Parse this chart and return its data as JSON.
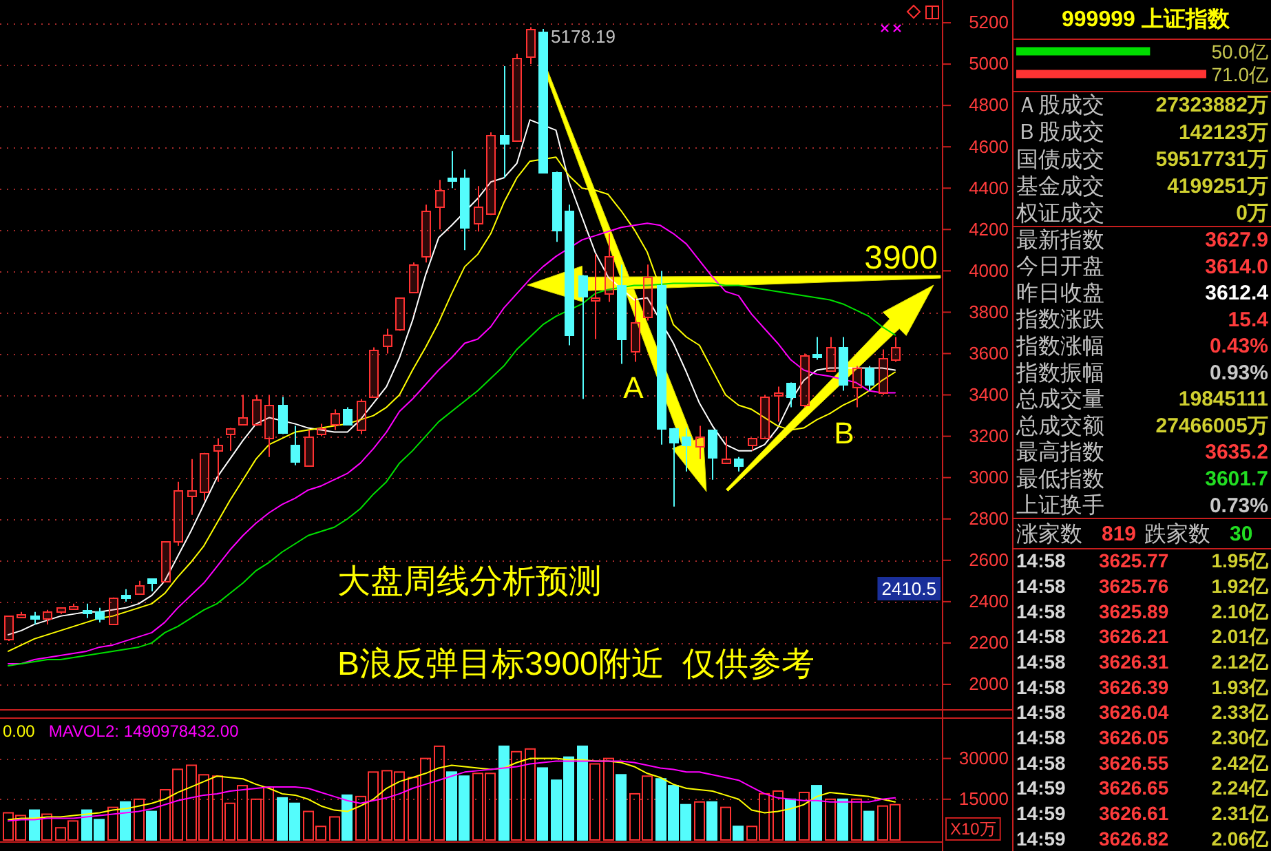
{
  "chart_data": [
    {
      "type": "candlestick",
      "categories": [
        null,
        null,
        null,
        null,
        null,
        null,
        null,
        null,
        null,
        null,
        null,
        null,
        null,
        null,
        null,
        null,
        null,
        null,
        null,
        null,
        null,
        null,
        null,
        null,
        null,
        null,
        null,
        null,
        null,
        null,
        null,
        null,
        null,
        null,
        null,
        null,
        null,
        null,
        null,
        null,
        null,
        null,
        null,
        null,
        null,
        null,
        null,
        null,
        null,
        null,
        null,
        null,
        null,
        null,
        null,
        null,
        null,
        null,
        null,
        null,
        null,
        null,
        null,
        null,
        null,
        null,
        null,
        null,
        null
      ],
      "ohlc": [
        [
          2220,
          2330,
          2210,
          2330
        ],
        [
          2330,
          2350,
          2320,
          2340
        ],
        [
          2330,
          2350,
          2290,
          2320
        ],
        [
          2320,
          2360,
          2290,
          2350
        ],
        [
          2350,
          2370,
          2340,
          2370
        ],
        [
          2370,
          2390,
          2360,
          2380
        ],
        [
          2360,
          2390,
          2320,
          2350
        ],
        [
          2350,
          2370,
          2300,
          2320
        ],
        [
          2290,
          2420,
          2290,
          2420
        ],
        [
          2430,
          2460,
          2400,
          2420
        ],
        [
          2440,
          2500,
          2440,
          2480
        ],
        [
          2510,
          2510,
          2450,
          2490
        ],
        [
          2500,
          2690,
          2500,
          2690
        ],
        [
          2690,
          2980,
          2670,
          2940
        ],
        [
          2910,
          3090,
          2820,
          2940
        ],
        [
          2930,
          3120,
          2890,
          3120
        ],
        [
          3130,
          3190,
          2980,
          3160
        ],
        [
          3210,
          3240,
          3130,
          3240
        ],
        [
          3260,
          3400,
          3260,
          3290
        ],
        [
          3260,
          3400,
          3250,
          3380
        ],
        [
          3190,
          3400,
          3100,
          3350
        ],
        [
          3350,
          3390,
          3210,
          3220
        ],
        [
          3160,
          3250,
          3060,
          3080
        ],
        [
          3060,
          3230,
          3060,
          3200
        ],
        [
          3210,
          3260,
          3200,
          3240
        ],
        [
          3260,
          3330,
          3230,
          3310
        ],
        [
          3330,
          3340,
          3260,
          3260
        ],
        [
          3230,
          3380,
          3210,
          3370
        ],
        [
          3390,
          3630,
          3390,
          3620
        ],
        [
          3640,
          3720,
          3600,
          3690
        ],
        [
          3720,
          3870,
          3710,
          3870
        ],
        [
          3900,
          4040,
          3900,
          4030
        ],
        [
          4070,
          4320,
          4040,
          4290
        ],
        [
          4310,
          4440,
          4200,
          4390
        ],
        [
          4450,
          4580,
          4400,
          4440
        ],
        [
          4450,
          4490,
          4100,
          4210
        ],
        [
          4230,
          4410,
          4190,
          4310
        ],
        [
          4280,
          4670,
          4270,
          4660
        ],
        [
          4660,
          4990,
          4450,
          4620
        ],
        [
          4630,
          5050,
          4630,
          5030
        ],
        [
          5040,
          5178.19,
          5000,
          5170
        ],
        [
          5160,
          5170,
          4480,
          4480
        ],
        [
          4480,
          4480,
          4140,
          4200
        ],
        [
          4290,
          4320,
          3640,
          3690
        ],
        [
          3980,
          3980,
          3380,
          3880
        ],
        [
          3860,
          4080,
          3670,
          3870
        ],
        [
          3890,
          4180,
          3850,
          4070
        ],
        [
          3930,
          4030,
          3550,
          3670
        ],
        [
          3610,
          3870,
          3560,
          3750
        ],
        [
          3780,
          4030,
          3760,
          3970
        ],
        [
          3930,
          4000,
          3160,
          3240
        ],
        [
          3240,
          3240,
          2860,
          3170
        ],
        [
          3200,
          3240,
          3030,
          3160
        ],
        [
          3150,
          3250,
          3090,
          3200
        ],
        [
          3230,
          3230,
          2990,
          3100
        ],
        [
          3070,
          3200,
          3070,
          3090
        ],
        [
          3090,
          3100,
          3030,
          3060
        ],
        [
          3160,
          3190,
          3130,
          3190
        ],
        [
          3190,
          3400,
          3190,
          3390
        ],
        [
          3400,
          3440,
          3270,
          3410
        ],
        [
          3460,
          3460,
          3340,
          3390
        ],
        [
          3350,
          3600,
          3340,
          3590
        ],
        [
          3600,
          3680,
          3570,
          3590
        ],
        [
          3520,
          3680,
          3520,
          3630
        ],
        [
          3630,
          3680,
          3420,
          3450
        ],
        [
          3440,
          3540,
          3340,
          3530
        ],
        [
          3530,
          3540,
          3420,
          3450
        ],
        [
          3410,
          3620,
          3400,
          3580
        ],
        [
          3570,
          3680,
          3560,
          3630
        ]
      ],
      "series": [
        {
          "type": "line",
          "color": "#ffffff",
          "values": [
            2240,
            2260,
            2290,
            2310,
            2330,
            2340,
            2350,
            2350,
            2360,
            2370,
            2390,
            2430,
            2500,
            2620,
            2740,
            2870,
            3000,
            3090,
            3180,
            3260,
            3290,
            null,
            3260,
            3240,
            3230,
            3220,
            3220,
            3280,
            3360,
            3440,
            3580,
            3760,
            3980,
            4160,
            4220,
            null,
            4350,
            4430,
            4450,
            4520,
            4730,
            null,
            4680,
            4430,
            4260,
            4090,
            3970,
            null,
            3860,
            3870,
            null,
            3650,
            3510,
            3360,
            3250,
            3160,
            3130,
            3130,
            3160,
            3240,
            3370,
            3470,
            3520,
            3530,
            null,
            3530,
            3530,
            3530,
            3520
          ]
        },
        {
          "type": "line",
          "color": "#ffff00",
          "values": [
            2160,
            2190,
            2220,
            2240,
            2260,
            2280,
            2300,
            2320,
            2330,
            2350,
            2370,
            2390,
            2440,
            2520,
            2590,
            2670,
            2780,
            2890,
            2990,
            3090,
            3160,
            3190,
            3220,
            3230,
            3240,
            3250,
            3260,
            3280,
            3300,
            3340,
            3400,
            3520,
            3630,
            3750,
            3890,
            4020,
            4080,
            4180,
            4330,
            4450,
            4530,
            null,
            4550,
            4460,
            4400,
            4390,
            4370,
            4290,
            4200,
            4090,
            null,
            3740,
            3680,
            3640,
            3520,
            3400,
            3350,
            3330,
            3290,
            3250,
            3230,
            3240,
            3280,
            3310,
            3350,
            3380,
            3420,
            3470,
            3510
          ]
        },
        {
          "type": "line",
          "color": "#ff00ff",
          "values": [
            2100,
            2100,
            2120,
            2130,
            2140,
            2150,
            2160,
            2180,
            2190,
            2210,
            2230,
            2250,
            2300,
            2370,
            2430,
            2490,
            2570,
            2650,
            2720,
            2780,
            2830,
            2870,
            2900,
            2940,
            2960,
            2990,
            3020,
            3070,
            3140,
            3220,
            3320,
            3380,
            3450,
            3520,
            3580,
            3650,
            3670,
            3730,
            3820,
            3890,
            3960,
            4020,
            4070,
            null,
            4150,
            4170,
            4190,
            4210,
            4220,
            4230,
            4220,
            4180,
            4130,
            4050,
            3970,
            3900,
            3880,
            3790,
            3720,
            3650,
            3570,
            3520,
            3500,
            3490,
            null,
            3460,
            3420,
            3410,
            3410
          ]
        },
        {
          "type": "line",
          "color": "#00e000",
          "values": [
            2090,
            2100,
            2110,
            2120,
            2120,
            2130,
            2140,
            2150,
            2160,
            2170,
            2180,
            2200,
            2250,
            2280,
            2320,
            2360,
            2390,
            2440,
            2490,
            2550,
            2590,
            2640,
            2680,
            2720,
            2740,
            2760,
            2800,
            2850,
            2920,
            2980,
            3070,
            3130,
            3200,
            3270,
            3320,
            3370,
            3420,
            3480,
            3540,
            3620,
            3680,
            3740,
            3780,
            null,
            3840,
            3890,
            3910,
            null,
            3930,
            3930,
            null,
            3940,
            3940,
            3940,
            3940,
            3930,
            3930,
            3920,
            3910,
            3900,
            3890,
            3880,
            3870,
            3860,
            3840,
            3810,
            3780,
            3730,
            3690
          ]
        }
      ],
      "ylim": [
        1880,
        5310
      ],
      "yticks": [
        2000,
        2200,
        2400,
        2600,
        2800,
        3000,
        3200,
        3400,
        3600,
        3800,
        4000,
        4200,
        4400,
        4600,
        4800,
        5000,
        5200
      ],
      "grid": "y",
      "tick_labels": "y",
      "annotations": [
        "5178.19",
        "3900",
        "A",
        "B",
        "大盘周线分析预测",
        "B浪反弹目标3900附近  仅供参考",
        "2410.5"
      ]
    },
    {
      "type": "bar",
      "categories": [
        null,
        null,
        null,
        null,
        null,
        null,
        null,
        null,
        null,
        null,
        null,
        null,
        null,
        null,
        null,
        null,
        null,
        null,
        null,
        null,
        null,
        null,
        null,
        null,
        null,
        null,
        null,
        null,
        null,
        null,
        null,
        null,
        null,
        null,
        null,
        null,
        null,
        null,
        null,
        null,
        null,
        null,
        null,
        null,
        null,
        null,
        null,
        null,
        null,
        null,
        null,
        null,
        null,
        null,
        null,
        null,
        null,
        null,
        null,
        null,
        null,
        null,
        null,
        null,
        null,
        null,
        null,
        null,
        null
      ],
      "series": [
        {
          "type": "bar",
          "values": [
            10000,
            9000,
            11000,
            9500,
            4500,
            7000,
            11000,
            7500,
            12000,
            14000,
            15000,
            10500,
            18500,
            26000,
            27500,
            24000,
            23500,
            13500,
            20000,
            15000,
            19500,
            15500,
            13500,
            10500,
            5000,
            8500,
            16500,
            16000,
            25000,
            25500,
            25000,
            23000,
            30000,
            34500,
            25000,
            23500,
            24500,
            24500,
            34500,
            32500,
            33500,
            26500,
            22000,
            30500,
            34500,
            28000,
            30000,
            24000,
            17000,
            23500,
            22500,
            20000,
            13000,
            14000,
            14000,
            12000,
            5000,
            5000,
            17000,
            18000,
            15000,
            17500,
            20000,
            15000,
            15000,
            15000,
            10500,
            12500,
            13000
          ],
          "colors": [
            "#ff3232",
            "#ff3232",
            "#54fcfc",
            "#ff3232",
            "#ff3232",
            "#ff3232",
            "#54fcfc",
            "#54fcfc",
            "#ff3232",
            "#54fcfc",
            "#ff3232",
            "#54fcfc",
            "#ff3232",
            "#ff3232",
            "#ff3232",
            "#ff3232",
            "#ff3232",
            "#ff3232",
            "#ff3232",
            "#ff3232",
            "#ff3232",
            "#54fcfc",
            "#54fcfc",
            "#ff3232",
            "#ff3232",
            "#ff3232",
            "#54fcfc",
            "#ff3232",
            "#ff3232",
            "#ff3232",
            "#ff3232",
            "#ff3232",
            "#ff3232",
            "#ff3232",
            "#54fcfc",
            "#54fcfc",
            "#ff3232",
            "#ff3232",
            "#54fcfc",
            "#ff3232",
            "#ff3232",
            "#54fcfc",
            "#54fcfc",
            "#54fcfc",
            "#54fcfc",
            "#ff3232",
            "#ff3232",
            "#54fcfc",
            "#ff3232",
            "#ff3232",
            "#54fcfc",
            "#54fcfc",
            "#54fcfc",
            "#ff3232",
            "#54fcfc",
            "#ff3232",
            "#54fcfc",
            "#ff3232",
            "#ff3232",
            "#ff3232",
            "#54fcfc",
            "#ff3232",
            "#54fcfc",
            "#ff3232",
            "#54fcfc",
            "#ff3232",
            "#54fcfc",
            "#ff3232",
            "#ff3232"
          ]
        },
        {
          "type": "line",
          "name": "0.00",
          "color": "#ffff00",
          "values": [
            7500,
            8000,
            8000,
            8500,
            8500,
            9000,
            9500,
            10000,
            11000,
            11500,
            12500,
            13500,
            15000,
            17500,
            19500,
            21500,
            23500,
            23000,
            22500,
            20500,
            19000,
            17000,
            16500,
            15000,
            12500,
            11000,
            10500,
            12500,
            15000,
            19000,
            21500,
            23000,
            24500,
            26500,
            27500,
            27000,
            26500,
            26000,
            26500,
            28500,
            30000,
            30000,
            30000,
            29500,
            29500,
            29000,
            29000,
            28500,
            27000,
            24500,
            23000,
            20500,
            19000,
            18500,
            18000,
            16500,
            15000,
            11000,
            10000,
            10500,
            11500,
            13000,
            16000,
            17500,
            17000,
            16500,
            16000,
            15000,
            14000
          ]
        },
        {
          "type": "line",
          "name": "MAVOL2: 1490978432.00",
          "color": "#ff00ff",
          "values": [
            7000,
            7500,
            7500,
            8000,
            8000,
            8000,
            8500,
            9000,
            9500,
            10000,
            10500,
            11500,
            13000,
            14500,
            15500,
            16500,
            17000,
            18000,
            18500,
            19000,
            19500,
            19500,
            19500,
            19000,
            17500,
            16000,
            14500,
            13500,
            14500,
            15500,
            17000,
            19000,
            20500,
            22000,
            23500,
            25000,
            25500,
            26000,
            26500,
            27000,
            28000,
            28500,
            29000,
            29000,
            29000,
            29000,
            29000,
            29000,
            28500,
            27500,
            26500,
            26000,
            25000,
            25000,
            24000,
            23000,
            22000,
            19500,
            17000,
            15500,
            15000,
            14500,
            14500,
            14000,
            14000,
            14000,
            14000,
            15000,
            15500
          ]
        }
      ],
      "ylim": [
        0,
        44600
      ],
      "yticks": [
        15000,
        30000
      ],
      "ylabel": "X10万",
      "grid": "y",
      "legend": "top left",
      "tick_labels": "y"
    },
    {
      "type": "bar",
      "orientation": "horizontal",
      "title": "999999 上证指数",
      "categories": [
        null,
        null
      ],
      "values": [
        50.0,
        71.0
      ],
      "colors": [
        "#00dd00",
        "#ff3333"
      ],
      "value_labels": [
        "50.0亿",
        "71.0亿"
      ],
      "tick_labels": false
    },
    {
      "type": "other",
      "categories": [
        "Ａ股成交",
        "Ｂ股成交",
        "国债成交",
        "基金成交",
        "权证成交"
      ],
      "value_labels": [
        "27323882万",
        "142123万",
        "59517731万",
        "4199251万",
        "0万"
      ],
      "colors": [
        "#d0d030",
        "#d0d030",
        "#d0d030",
        "#d0d030",
        "#d0d030"
      ]
    },
    {
      "type": "other",
      "categories": [
        "最新指数",
        "今日开盘",
        "昨日收盘",
        "指数涨跌",
        "指数涨幅",
        "指数振幅",
        "总成交量",
        "总成交额",
        "最高指数",
        "最低指数",
        "上证换手"
      ],
      "value_labels": [
        "3627.9",
        "3614.0",
        "3612.4",
        "15.4",
        "0.43%",
        "0.93%",
        "19845111",
        "27466005万",
        "3635.2",
        "3601.7",
        "0.73%"
      ],
      "colors": [
        "#ff3c3c",
        "#ff3c3c",
        "#ffffff",
        "#ff3c3c",
        "#ff3c3c",
        "#c8c8c8",
        "#d0d030",
        "#d0d030",
        "#ff3c3c",
        "#22dd22",
        "#c8c8c8"
      ]
    },
    {
      "type": "other",
      "annotations": [
        "涨家数",
        "819",
        "跌家数",
        "30"
      ],
      "colors": [
        "#c0c0c0",
        "#ff3c3c",
        "#c0c0c0",
        "#22dd22"
      ]
    },
    {
      "type": "other",
      "categories": [
        "14:58",
        "14:58",
        "14:58",
        "14:58",
        "14:58",
        "14:58",
        "14:58",
        "14:58",
        "14:58",
        "14:59",
        "14:59",
        "14:59"
      ],
      "series": [
        {
          "color": "#ff3c3c",
          "values": [
            3625.77,
            3625.76,
            3625.89,
            3626.21,
            3626.31,
            3626.39,
            3626.04,
            3626.05,
            3626.55,
            3626.65,
            3626.61,
            3626.82
          ]
        }
      ],
      "data_labels": true,
      "value_labels": [
        "1.95亿",
        "1.92亿",
        "2.10亿",
        "2.01亿",
        "2.12亿",
        "1.93亿",
        "2.33亿",
        "2.30亿",
        "2.42亿",
        "2.24亿",
        "2.31亿",
        "2.06亿"
      ],
      "color": "#d0d030"
    }
  ]
}
